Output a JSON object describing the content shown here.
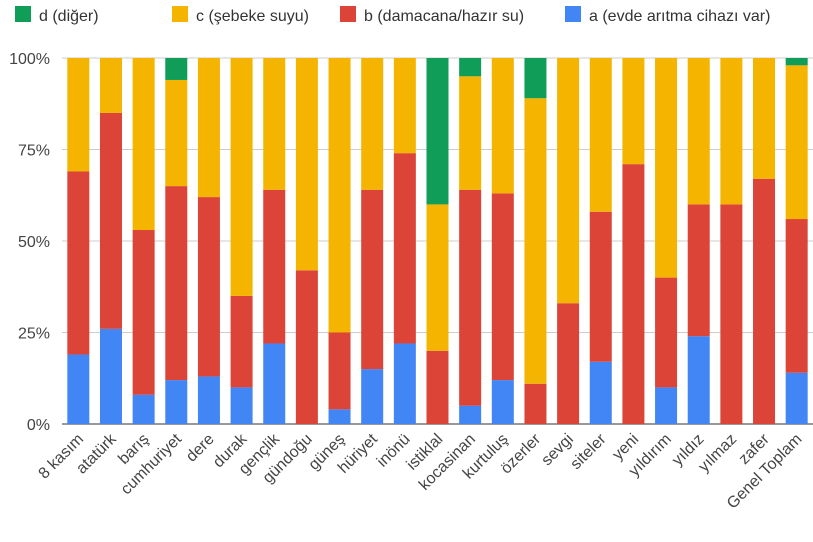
{
  "chart_data": {
    "type": "bar",
    "stacked": true,
    "normalized": true,
    "categories": [
      "8 kasım",
      "atatürk",
      "barış",
      "cumhuriyet",
      "dere",
      "durak",
      "gençlik",
      "gündoğu",
      "güneş",
      "hüriyet",
      "inönü",
      "istiklal",
      "kocasinan",
      "kurtuluş",
      "özerler",
      "sevgi",
      "siteler",
      "yeni",
      "yıldırım",
      "yıldız",
      "yılmaz",
      "zafer",
      "Genel Toplam"
    ],
    "series": [
      {
        "name": "a (evde arıtma cihazı var)",
        "color": "#4285F4",
        "values": [
          19,
          26,
          8,
          12,
          13,
          10,
          22,
          0,
          4,
          15,
          22,
          0,
          5,
          12,
          0,
          0,
          17,
          0,
          10,
          24,
          0,
          0,
          14
        ]
      },
      {
        "name": "b (damacana/hazır su)",
        "color": "#DB4437",
        "values": [
          50,
          59,
          45,
          53,
          49,
          25,
          42,
          42,
          21,
          49,
          52,
          20,
          59,
          51,
          11,
          33,
          41,
          71,
          30,
          36,
          60,
          67,
          42
        ]
      },
      {
        "name": "c (şebeke suyu)",
        "color": "#F4B400",
        "values": [
          31,
          15,
          47,
          29,
          38,
          65,
          36,
          58,
          75,
          36,
          26,
          40,
          31,
          37,
          78,
          67,
          42,
          29,
          60,
          40,
          40,
          33,
          42
        ]
      },
      {
        "name": "d (diğer)",
        "color": "#0F9D58",
        "values": [
          0,
          0,
          0,
          6,
          0,
          0,
          0,
          0,
          0,
          0,
          0,
          40,
          5,
          0,
          11,
          0,
          0,
          0,
          0,
          0,
          0,
          0,
          2
        ]
      }
    ],
    "legend_order": [
      "d (diğer)",
      "c (şebeke suyu)",
      "b (damacana/hazır su)",
      "a (evde arıtma cihazı var)"
    ],
    "legend_position": "top",
    "y_ticks": [
      "0%",
      "25%",
      "50%",
      "75%",
      "100%"
    ],
    "ylim": [
      0,
      100
    ],
    "grid": true,
    "title": "",
    "xlabel": "",
    "ylabel": ""
  }
}
